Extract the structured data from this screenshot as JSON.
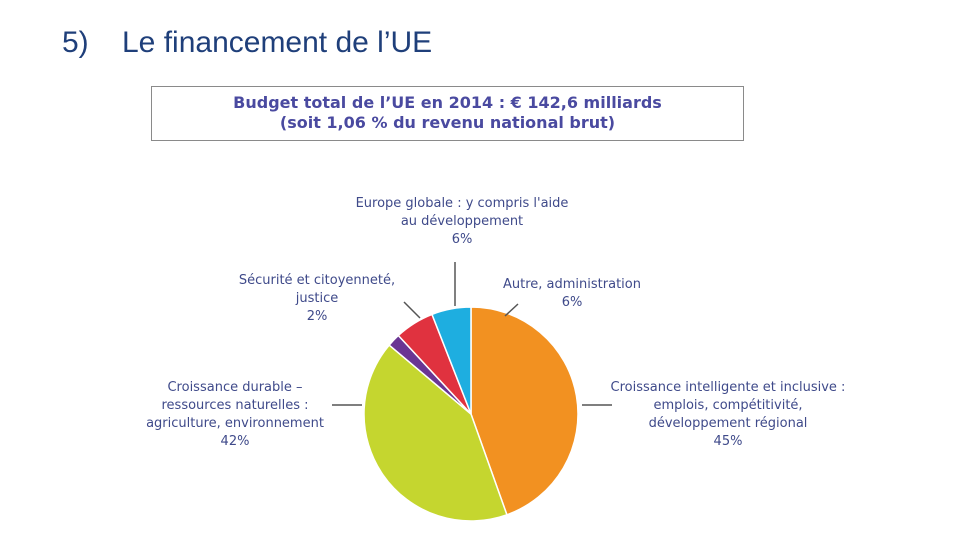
{
  "slide": {
    "number": "5)",
    "title": "Le financement de l’UE"
  },
  "chart_data": {
    "type": "pie",
    "title": "Budget total de l’UE en 2014 : € 142,6 milliards",
    "subtitle": "(soit 1,06 % du revenu national brut)",
    "slices": [
      {
        "lines": [
          "Croissance intelligente et inclusive :",
          "emplois, compétitivité,",
          "développement régional"
        ],
        "pct_label": "45%",
        "value": 45,
        "color": "#f29121"
      },
      {
        "lines": [
          "Croissance durable –",
          "ressources naturelles :",
          "agriculture, environnement"
        ],
        "pct_label": "42%",
        "value": 42,
        "color": "#c5d62f"
      },
      {
        "lines": [
          "Sécurité et citoyenneté,",
          "justice"
        ],
        "pct_label": "2%",
        "value": 2,
        "color": "#6a3593"
      },
      {
        "lines": [
          "Europe globale : y compris l'aide",
          "au développement"
        ],
        "pct_label": "6%",
        "value": 6,
        "color": "#e0323f"
      },
      {
        "lines": [
          "Autre, administration"
        ],
        "pct_label": "6%",
        "value": 6,
        "color": "#1eaee0"
      }
    ]
  }
}
